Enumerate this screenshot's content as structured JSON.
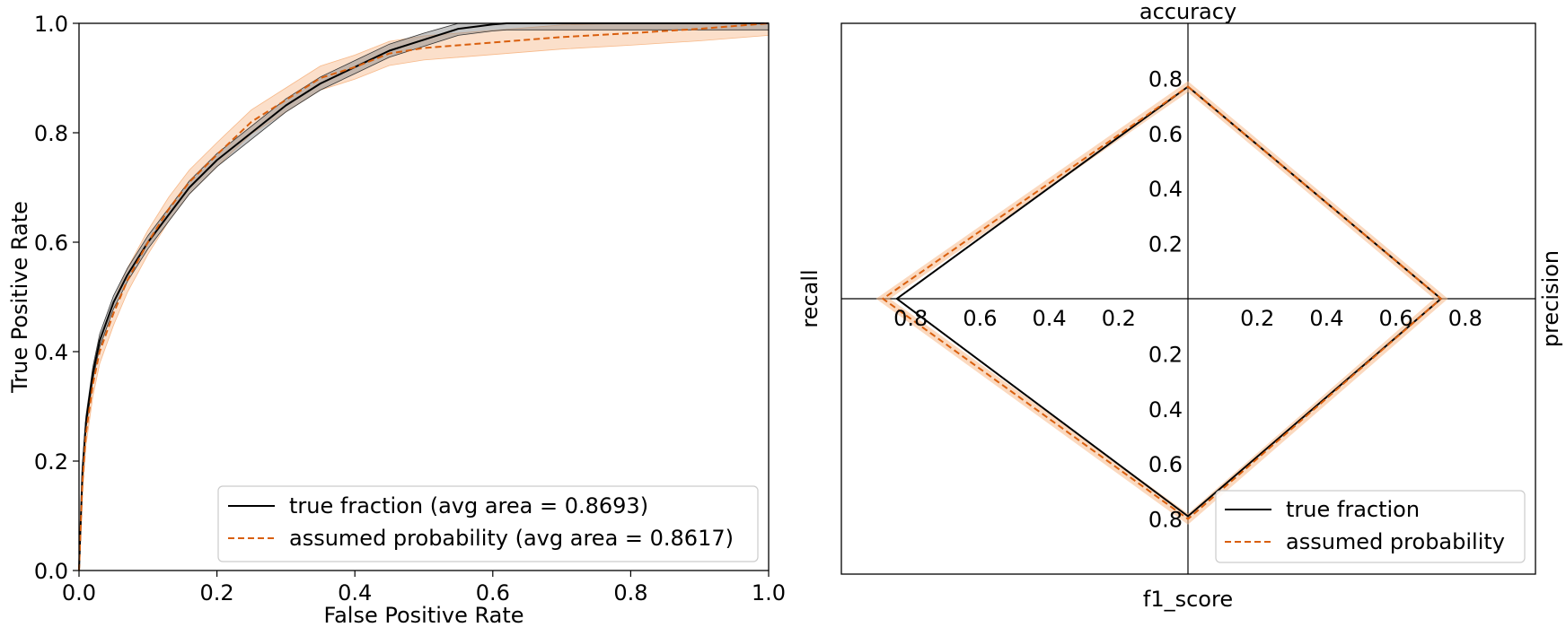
{
  "colors": {
    "true_fraction": "#000000",
    "true_fraction_band": "#8c8c8c",
    "assumed_probability": "#d95f0e",
    "assumed_probability_band": "#f7b98a"
  },
  "chart_data": [
    {
      "type": "line",
      "title": "",
      "xlabel": "False Positive Rate",
      "ylabel": "True Positive Rate",
      "xlim": [
        0.0,
        1.0
      ],
      "ylim": [
        0.0,
        1.0
      ],
      "xticks": [
        "0.0",
        "0.2",
        "0.4",
        "0.6",
        "0.8",
        "1.0"
      ],
      "yticks": [
        "0.0",
        "0.2",
        "0.4",
        "0.6",
        "0.8",
        "1.0"
      ],
      "legend_position": "lower-right",
      "series": [
        {
          "name": "true fraction (avg area = 0.8693)",
          "style": "solid",
          "band_width": 0.012,
          "x": [
            0.0,
            0.005,
            0.01,
            0.02,
            0.03,
            0.05,
            0.07,
            0.1,
            0.13,
            0.16,
            0.2,
            0.25,
            0.3,
            0.35,
            0.4,
            0.45,
            0.5,
            0.55,
            0.6,
            0.62,
            0.7,
            0.8,
            0.9,
            1.0
          ],
          "y": [
            0.0,
            0.18,
            0.27,
            0.36,
            0.42,
            0.49,
            0.54,
            0.6,
            0.65,
            0.7,
            0.75,
            0.8,
            0.85,
            0.89,
            0.92,
            0.95,
            0.97,
            0.99,
            0.998,
            1.0,
            1.0,
            1.0,
            1.0,
            1.0
          ]
        },
        {
          "name": "assumed probability (avg area = 0.8617)",
          "style": "dashed",
          "band_width": 0.022,
          "x": [
            0.0,
            0.005,
            0.01,
            0.02,
            0.03,
            0.05,
            0.07,
            0.1,
            0.13,
            0.16,
            0.2,
            0.25,
            0.3,
            0.35,
            0.4,
            0.45,
            0.5,
            0.6,
            0.7,
            0.8,
            0.9,
            1.0
          ],
          "y": [
            0.0,
            0.16,
            0.25,
            0.34,
            0.4,
            0.47,
            0.53,
            0.6,
            0.66,
            0.71,
            0.76,
            0.82,
            0.86,
            0.9,
            0.92,
            0.945,
            0.955,
            0.965,
            0.975,
            0.982,
            0.99,
            1.0
          ]
        }
      ]
    },
    {
      "type": "radar",
      "title": "",
      "axes": [
        "accuracy",
        "precision",
        "f1_score",
        "recall"
      ],
      "axis_max": 1.0,
      "tick_labels": [
        "0.2",
        "0.4",
        "0.6",
        "0.8"
      ],
      "legend_position": "lower-right",
      "series": [
        {
          "name": "true fraction",
          "style": "solid",
          "values": {
            "accuracy": 0.77,
            "precision": 0.73,
            "f1_score": 0.79,
            "recall": 0.84
          },
          "band_width": 0.0
        },
        {
          "name": "assumed probability",
          "style": "dashed",
          "values": {
            "accuracy": 0.77,
            "precision": 0.73,
            "f1_score": 0.8,
            "recall": 0.88
          },
          "band_width": 0.02
        }
      ]
    }
  ]
}
